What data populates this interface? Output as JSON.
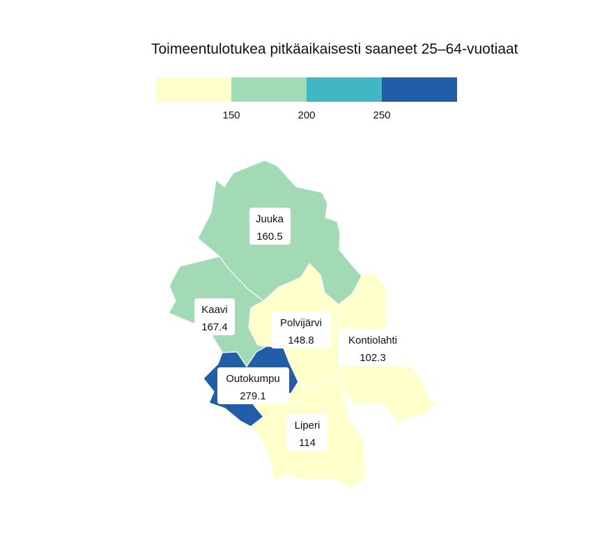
{
  "title": "Toimeentulotukea pitkäaikaisesti saaneet 25–64-vuotiaat",
  "legend": {
    "ticks": [
      "150",
      "200",
      "250"
    ],
    "colors": [
      "#ffffcc",
      "#a1dab4",
      "#41b6c4",
      "#225ea8"
    ],
    "breaks": [
      150,
      200,
      250
    ]
  },
  "regions": [
    {
      "id": "juuka",
      "name": "Juuka",
      "value": "160.5"
    },
    {
      "id": "kaavi",
      "name": "Kaavi",
      "value": "167.4"
    },
    {
      "id": "polvijarvi",
      "name": "Polvijärvi",
      "value": "148.8"
    },
    {
      "id": "kontiolahti",
      "name": "Kontiolahti",
      "value": "102.3"
    },
    {
      "id": "outokumpu",
      "name": "Outokumpu",
      "value": "279.1"
    },
    {
      "id": "liperi",
      "name": "Liperi",
      "value": "114"
    }
  ]
}
